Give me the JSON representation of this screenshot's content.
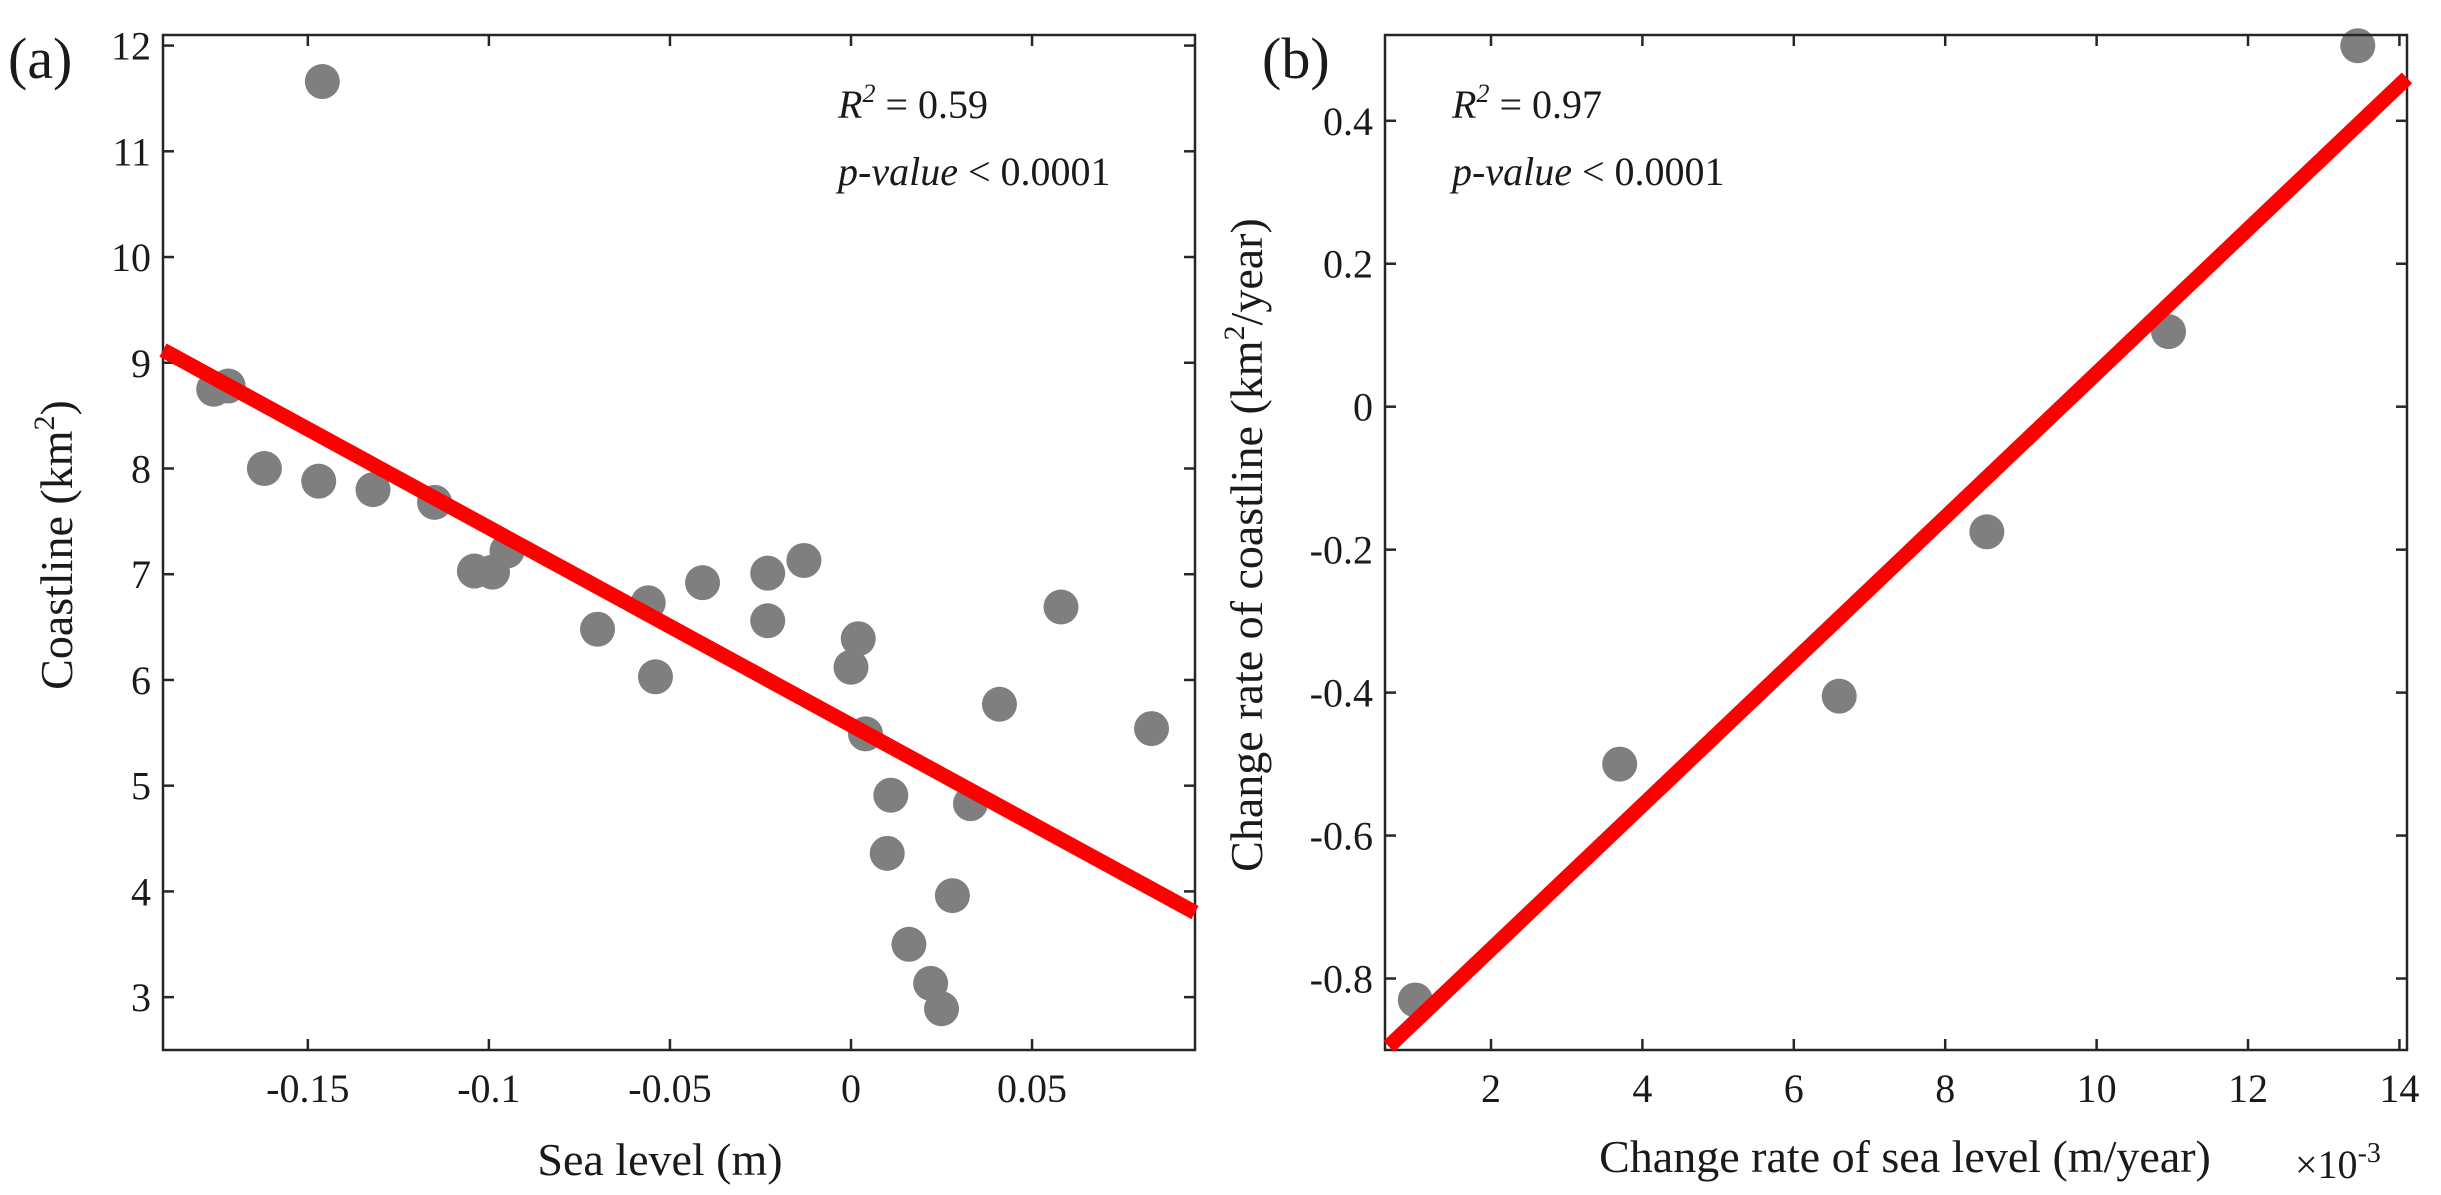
{
  "chart_data": [
    {
      "type": "scatter",
      "panel_label": "(a)",
      "xlabel": "Sea level (m)",
      "ylabel": "Coastline (km²)",
      "xlim": [
        -0.19,
        0.095
      ],
      "ylim": [
        2.5,
        12.1
      ],
      "xticks": [
        -0.15,
        -0.1,
        -0.05,
        0,
        0.05
      ],
      "xtick_labels": [
        "-0.15",
        "-0.1",
        "-0.05",
        "0",
        "0.05"
      ],
      "yticks": [
        3,
        4,
        5,
        6,
        7,
        8,
        9,
        10,
        11,
        12
      ],
      "ytick_labels": [
        "3",
        "4",
        "5",
        "6",
        "7",
        "8",
        "9",
        "10",
        "11",
        "12"
      ],
      "annotations": [
        {
          "label": "R² = 0.59",
          "position": "top-right"
        },
        {
          "label": "p-value < 0.0001",
          "position": "top-right"
        }
      ],
      "r2_text": "R",
      "r2_sup": "2",
      "r2_value": " = 0.59",
      "p_text": "p-value",
      "p_value": " < 0.0001",
      "points": [
        {
          "x": -0.176,
          "y": 8.75
        },
        {
          "x": -0.172,
          "y": 8.78
        },
        {
          "x": -0.162,
          "y": 8.0
        },
        {
          "x": -0.147,
          "y": 7.88
        },
        {
          "x": -0.146,
          "y": 11.66
        },
        {
          "x": -0.132,
          "y": 7.8
        },
        {
          "x": -0.115,
          "y": 7.68
        },
        {
          "x": -0.104,
          "y": 7.03
        },
        {
          "x": -0.099,
          "y": 7.02
        },
        {
          "x": -0.095,
          "y": 7.22
        },
        {
          "x": -0.07,
          "y": 6.48
        },
        {
          "x": -0.056,
          "y": 6.73
        },
        {
          "x": -0.054,
          "y": 6.03
        },
        {
          "x": -0.041,
          "y": 6.92
        },
        {
          "x": -0.023,
          "y": 7.01
        },
        {
          "x": -0.023,
          "y": 6.56
        },
        {
          "x": -0.013,
          "y": 7.13
        },
        {
          "x": 0.0,
          "y": 6.12
        },
        {
          "x": 0.002,
          "y": 6.39
        },
        {
          "x": 0.004,
          "y": 5.49
        },
        {
          "x": 0.011,
          "y": 4.91
        },
        {
          "x": 0.01,
          "y": 4.36
        },
        {
          "x": 0.016,
          "y": 3.5
        },
        {
          "x": 0.022,
          "y": 3.13
        },
        {
          "x": 0.025,
          "y": 2.89
        },
        {
          "x": 0.028,
          "y": 3.96
        },
        {
          "x": 0.033,
          "y": 4.83
        },
        {
          "x": 0.041,
          "y": 5.77
        },
        {
          "x": 0.058,
          "y": 6.69
        },
        {
          "x": 0.083,
          "y": 5.54
        }
      ],
      "fit_line": {
        "x": [
          -0.19,
          0.095
        ],
        "y": [
          9.12,
          3.8
        ],
        "color": "#ff0000"
      },
      "point_color": "#7f7f7f"
    },
    {
      "type": "scatter",
      "panel_label": "(b)",
      "xlabel": "Change rate of sea level (m/year)",
      "ylabel": "Change rate of coastline (km²/year)",
      "x_multiplier": "×10-3",
      "x_multiplier_base": "×10",
      "x_multiplier_exp": "-3",
      "xlim": [
        0.6,
        14.1
      ],
      "ylim": [
        -0.9,
        0.52
      ],
      "xticks": [
        2,
        4,
        6,
        8,
        10,
        12,
        14
      ],
      "xtick_labels": [
        "2",
        "4",
        "6",
        "8",
        "10",
        "12",
        "14"
      ],
      "yticks": [
        -0.8,
        -0.6,
        -0.4,
        -0.2,
        0,
        0.2,
        0.4
      ],
      "ytick_labels": [
        "-0.8",
        "-0.6",
        "-0.4",
        "-0.2",
        "0",
        "0.2",
        "0.4"
      ],
      "annotations": [
        {
          "label": "R² = 0.97",
          "position": "top-left"
        },
        {
          "label": "p-value < 0.0001",
          "position": "top-left"
        }
      ],
      "r2_text": "R",
      "r2_sup": "2",
      "r2_value": " = 0.97",
      "p_text": "p-value",
      "p_value": " < 0.0001",
      "points": [
        {
          "x": 1.0,
          "y": -0.83
        },
        {
          "x": 3.7,
          "y": -0.5
        },
        {
          "x": 6.6,
          "y": -0.405
        },
        {
          "x": 8.55,
          "y": -0.175
        },
        {
          "x": 10.95,
          "y": 0.105
        },
        {
          "x": 13.45,
          "y": 0.505
        }
      ],
      "fit_line": {
        "x": [
          0.65,
          14.1
        ],
        "y": [
          -0.895,
          0.46
        ],
        "color": "#ff0000"
      },
      "point_color": "#7f7f7f"
    }
  ]
}
